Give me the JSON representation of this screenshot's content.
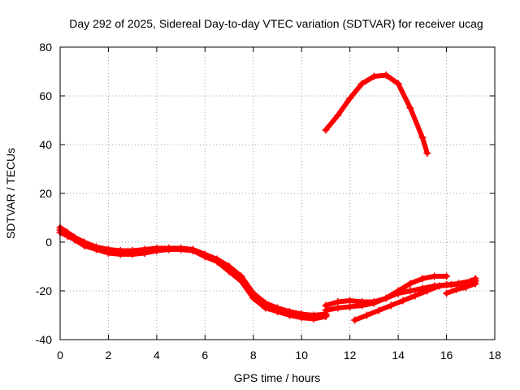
{
  "chart_data": {
    "type": "scatter",
    "title": "Day 292 of 2025, Sidereal Day-to-day VTEC variation (SDTVAR) for receiver ucag",
    "xlabel": "GPS time / hours",
    "ylabel": "SDTVAR / TECUs",
    "xlim": [
      0,
      18
    ],
    "ylim": [
      -40,
      80
    ],
    "xticks": [
      "0",
      "2",
      "4",
      "6",
      "8",
      "10",
      "12",
      "14",
      "16",
      "18"
    ],
    "yticks": [
      "-40",
      "-20",
      "0",
      "20",
      "40",
      "60",
      "80"
    ],
    "grid": true,
    "marker": "+",
    "series_color": "#ff0000",
    "series": [
      {
        "name": "s1",
        "x": [
          0,
          0.3,
          0.6,
          1,
          1.5,
          2,
          2.5,
          3,
          3.5,
          4,
          4.5,
          5,
          5.5,
          6,
          6.5,
          7,
          7.5,
          8,
          8.5,
          9,
          9.5,
          10,
          10.5,
          11
        ],
        "y": [
          6,
          4,
          2,
          0,
          -2,
          -3,
          -3.5,
          -3.5,
          -3,
          -2.5,
          -2.5,
          -2.5,
          -3,
          -5,
          -7,
          -10,
          -14,
          -21,
          -25,
          -27,
          -28.5,
          -29.5,
          -30,
          -29.5
        ]
      },
      {
        "name": "s2",
        "x": [
          0,
          0.3,
          0.6,
          1,
          1.5,
          2,
          2.5,
          3,
          3.5,
          4,
          4.5,
          5,
          5.5,
          6,
          6.5,
          7,
          7.5,
          8,
          8.5,
          9,
          9.5,
          10,
          10.5,
          11
        ],
        "y": [
          4,
          2.5,
          1,
          -1.5,
          -3,
          -4,
          -4.5,
          -4.5,
          -4,
          -3.5,
          -3,
          -3,
          -3.5,
          -6,
          -8,
          -12,
          -16,
          -23,
          -27,
          -28.5,
          -30,
          -31,
          -31.5,
          -30.5
        ]
      },
      {
        "name": "s3",
        "x": [
          0,
          0.3,
          0.6,
          1,
          1.5,
          2,
          2.5,
          3,
          3.5,
          4,
          4.5,
          5,
          5.5,
          6,
          6.5,
          7,
          7.5,
          8,
          8.5,
          9,
          9.5,
          10,
          10.5,
          11
        ],
        "y": [
          5,
          3,
          1,
          -1,
          -3,
          -4.5,
          -5,
          -5,
          -4.5,
          -3.5,
          -3,
          -3,
          -3.5,
          -5.5,
          -7.5,
          -11,
          -15,
          -22,
          -26,
          -28,
          -29,
          -30,
          -31,
          -30
        ]
      },
      {
        "name": "s4",
        "x": [
          11,
          11.5,
          12,
          12.5,
          13,
          13.5,
          14,
          14.5,
          15,
          15.5,
          16
        ],
        "y": [
          -26,
          -24.5,
          -24,
          -24.5,
          -24.5,
          -23,
          -20,
          -17,
          -15,
          -14,
          -14
        ]
      },
      {
        "name": "s5",
        "x": [
          11,
          11.5,
          12,
          12.5,
          13,
          13.5,
          14,
          14.5,
          15,
          15.5,
          16,
          16.5,
          17,
          17.2
        ],
        "y": [
          -28,
          -27,
          -26.5,
          -26,
          -25,
          -23,
          -21,
          -20,
          -19,
          -18,
          -17.5,
          -17,
          -16,
          -15
        ]
      },
      {
        "name": "s6",
        "x": [
          12.2,
          12.7,
          13.2,
          13.7,
          14.2,
          14.7,
          15.2,
          15.7,
          16.2,
          16.7,
          17.2
        ],
        "y": [
          -32,
          -30,
          -28,
          -26,
          -24,
          -22,
          -20,
          -18,
          -17.5,
          -17,
          -16
        ]
      },
      {
        "name": "s7",
        "x": [
          16,
          16.4,
          16.8,
          17.2
        ],
        "y": [
          -21,
          -19.5,
          -18.5,
          -17
        ]
      },
      {
        "name": "s8",
        "x": [
          11,
          11.5,
          12,
          12.5,
          13,
          13.5,
          14,
          14.5,
          15,
          15.2
        ],
        "y": [
          46,
          52,
          59,
          65,
          68,
          68.5,
          65,
          55,
          43,
          36.5
        ]
      }
    ]
  }
}
